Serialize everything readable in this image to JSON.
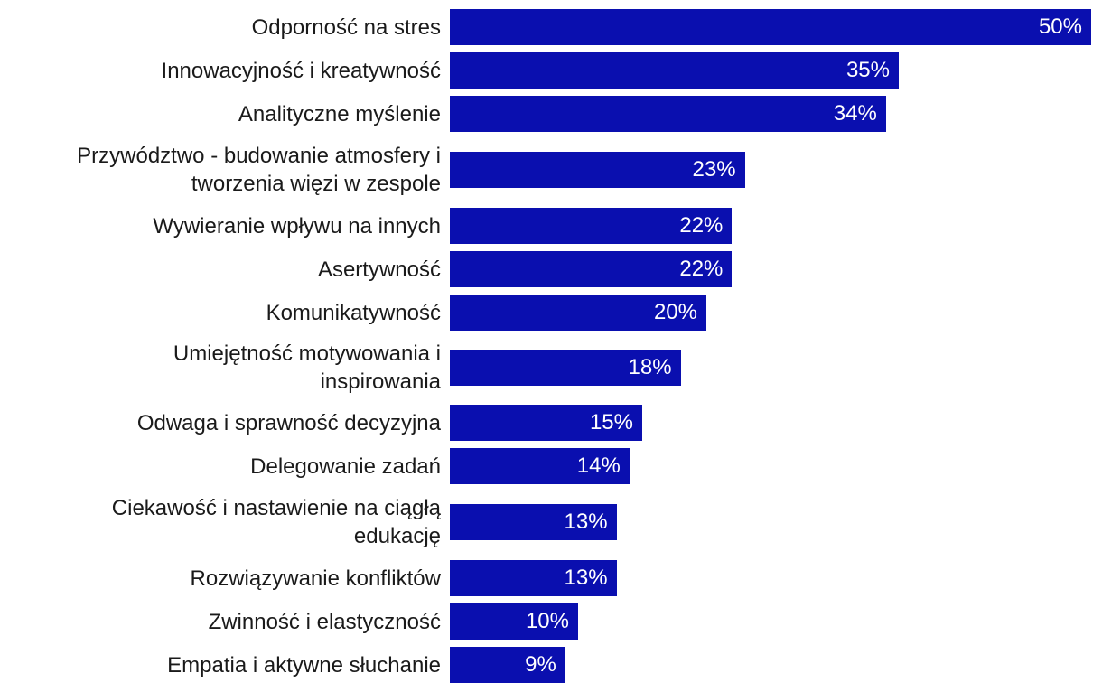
{
  "chart_data": {
    "type": "bar",
    "orientation": "horizontal",
    "bar_color": "#0A0FAF",
    "value_label_color": "#FFFFFF",
    "categories": [
      "Odporność na stres",
      "Innowacyjność i kreatywność",
      "Analityczne myślenie",
      "Przywództwo - budowanie atmosfery i tworzenia więzi w zespole",
      "Wywieranie wpływu na innych",
      "Asertywność",
      "Komunikatywność",
      "Umiejętność motywowania i inspirowania",
      "Odwaga i sprawność decyzyjna",
      "Delegowanie zadań",
      "Ciekawość i nastawienie na ciągłą edukację",
      "Rozwiązywanie konfliktów",
      "Zwinność i elastyczność",
      "Empatia i aktywne słuchanie"
    ],
    "category_lines": [
      [
        "Odporność na stres"
      ],
      [
        "Innowacyjność i kreatywność"
      ],
      [
        "Analityczne myślenie"
      ],
      [
        "Przywództwo - budowanie atmosfery i",
        "tworzenia więzi w zespole"
      ],
      [
        "Wywieranie wpływu na innych"
      ],
      [
        "Asertywność"
      ],
      [
        "Komunikatywność"
      ],
      [
        "Umiejętność motywowania i",
        "inspirowania"
      ],
      [
        "Odwaga i sprawność decyzyjna"
      ],
      [
        "Delegowanie zadań"
      ],
      [
        "Ciekawość i nastawienie na ciągłą",
        "edukację"
      ],
      [
        "Rozwiązywanie konfliktów"
      ],
      [
        "Zwinność i elastyczność"
      ],
      [
        "Empatia i aktywne słuchanie"
      ]
    ],
    "values": [
      50,
      35,
      34,
      23,
      22,
      22,
      20,
      18,
      15,
      14,
      13,
      13,
      10,
      9
    ],
    "value_labels": [
      "50%",
      "35%",
      "34%",
      "23%",
      "22%",
      "22%",
      "20%",
      "18%",
      "15%",
      "14%",
      "13%",
      "13%",
      "10%",
      "9%"
    ],
    "unit": "%",
    "xlim": [
      0,
      50
    ],
    "grid": false,
    "legend": "none"
  }
}
